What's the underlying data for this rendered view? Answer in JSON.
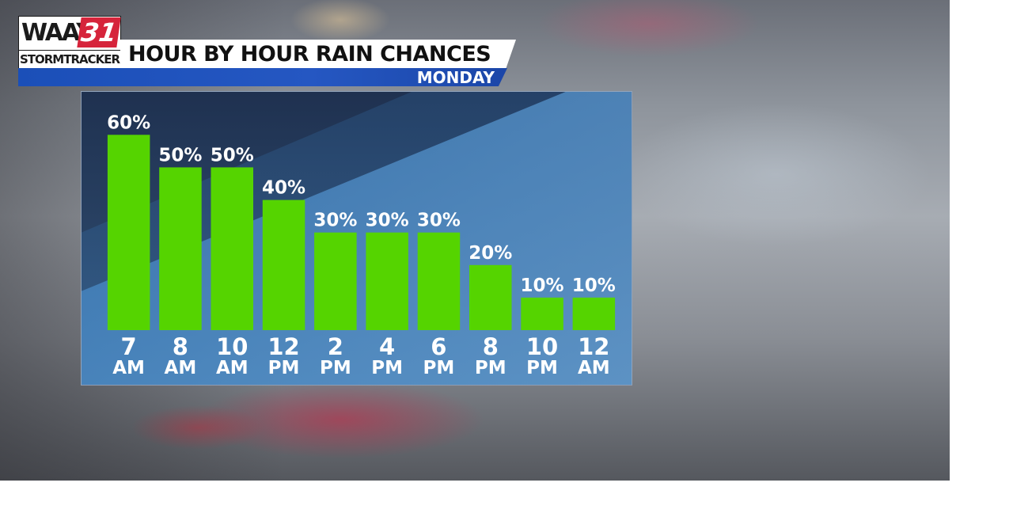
{
  "brand": {
    "logo_top": "WAAY",
    "logo_number": "31",
    "logo_bottom": "STORMTRACKER"
  },
  "header": {
    "title": "HOUR BY HOUR RAIN CHANCES",
    "subtitle": "MONDAY"
  },
  "colors": {
    "bar": "#55d400",
    "logo_red": "#d6243b",
    "subtitle_blue": "#2557c2"
  },
  "chart_data": {
    "type": "bar",
    "title": "HOUR BY HOUR RAIN CHANCES",
    "subtitle": "MONDAY",
    "categories": [
      [
        "7",
        "AM"
      ],
      [
        "8",
        "AM"
      ],
      [
        "10",
        "AM"
      ],
      [
        "12",
        "PM"
      ],
      [
        "2",
        "PM"
      ],
      [
        "4",
        "PM"
      ],
      [
        "6",
        "PM"
      ],
      [
        "8",
        "PM"
      ],
      [
        "10",
        "PM"
      ],
      [
        "12",
        "AM"
      ]
    ],
    "values": [
      60,
      50,
      50,
      40,
      30,
      30,
      30,
      20,
      10,
      10
    ],
    "value_labels": [
      "60%",
      "50%",
      "50%",
      "40%",
      "30%",
      "30%",
      "30%",
      "20%",
      "10%",
      "10%"
    ],
    "unit": "%",
    "ylim": [
      0,
      63
    ],
    "grid": false,
    "legend": "none"
  }
}
